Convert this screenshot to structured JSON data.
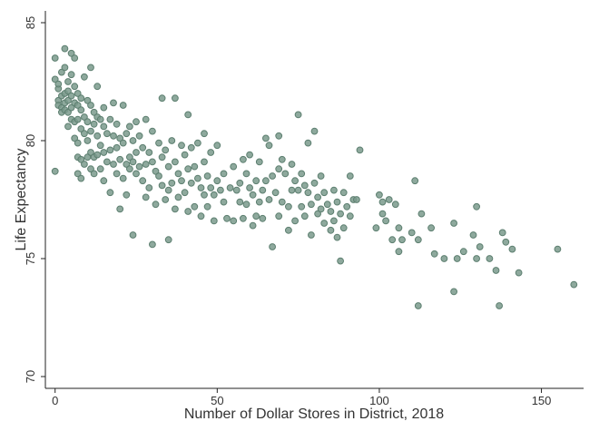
{
  "chart_data": {
    "type": "scatter",
    "xlabel": "Number of Dollar Stores in District, 2018",
    "ylabel": "Life Expectancy",
    "xlim": [
      -3,
      163
    ],
    "ylim": [
      69.5,
      85.5
    ],
    "xticks": [
      0,
      50,
      100,
      150
    ],
    "yticks": [
      70,
      75,
      80,
      85
    ],
    "xtick_labels": [
      "0",
      "50",
      "100",
      "150"
    ],
    "ytick_labels": [
      "70",
      "75",
      "80",
      "85"
    ],
    "grid": false,
    "legend": "none",
    "marker_color": "#7a9a8c",
    "marker_edge_color": "#5d7f70",
    "points": [
      [
        0,
        78.7
      ],
      [
        0,
        83.5
      ],
      [
        0,
        82.6
      ],
      [
        1,
        82.2
      ],
      [
        1,
        81.7
      ],
      [
        1,
        81.5
      ],
      [
        1,
        82.4
      ],
      [
        2,
        81.9
      ],
      [
        2,
        81.4
      ],
      [
        2,
        82.9
      ],
      [
        2,
        81.2
      ],
      [
        3,
        83.1
      ],
      [
        3,
        82.0
      ],
      [
        3,
        81.6
      ],
      [
        3,
        81.3
      ],
      [
        3,
        83.9
      ],
      [
        4,
        82.5
      ],
      [
        4,
        82.1
      ],
      [
        4,
        81.7
      ],
      [
        4,
        81.2
      ],
      [
        4,
        80.6
      ],
      [
        5,
        83.7
      ],
      [
        5,
        82.8
      ],
      [
        5,
        81.9
      ],
      [
        5,
        81.4
      ],
      [
        5,
        80.9
      ],
      [
        6,
        83.5
      ],
      [
        6,
        82.3
      ],
      [
        6,
        81.6
      ],
      [
        6,
        80.8
      ],
      [
        6,
        80.1
      ],
      [
        7,
        82.0
      ],
      [
        7,
        81.5
      ],
      [
        7,
        80.9
      ],
      [
        7,
        79.9
      ],
      [
        7,
        79.3
      ],
      [
        7,
        78.6
      ],
      [
        8,
        81.8
      ],
      [
        8,
        81.3
      ],
      [
        8,
        80.5
      ],
      [
        8,
        79.2
      ],
      [
        8,
        78.4
      ],
      [
        9,
        82.7
      ],
      [
        9,
        81.0
      ],
      [
        9,
        80.3
      ],
      [
        9,
        79.0
      ],
      [
        10,
        81.7
      ],
      [
        10,
        80.8
      ],
      [
        10,
        80.0
      ],
      [
        10,
        79.3
      ],
      [
        11,
        83.1
      ],
      [
        11,
        81.5
      ],
      [
        11,
        80.4
      ],
      [
        11,
        79.5
      ],
      [
        11,
        78.8
      ],
      [
        12,
        81.2
      ],
      [
        12,
        80.7
      ],
      [
        12,
        79.3
      ],
      [
        12,
        78.6
      ],
      [
        13,
        82.3
      ],
      [
        13,
        81.0
      ],
      [
        13,
        80.2
      ],
      [
        13,
        79.4
      ],
      [
        14,
        80.9
      ],
      [
        14,
        79.8
      ],
      [
        14,
        78.8
      ],
      [
        15,
        81.4
      ],
      [
        15,
        80.6
      ],
      [
        15,
        79.5
      ],
      [
        15,
        78.3
      ],
      [
        16,
        80.3
      ],
      [
        16,
        79.1
      ],
      [
        17,
        80.9
      ],
      [
        17,
        79.6
      ],
      [
        17,
        77.8
      ],
      [
        18,
        81.6
      ],
      [
        18,
        80.2
      ],
      [
        18,
        79.0
      ],
      [
        19,
        80.7
      ],
      [
        19,
        79.7
      ],
      [
        19,
        78.6
      ],
      [
        20,
        80.1
      ],
      [
        20,
        79.2
      ],
      [
        20,
        77.1
      ],
      [
        21,
        81.5
      ],
      [
        21,
        79.9
      ],
      [
        21,
        78.4
      ],
      [
        22,
        80.3
      ],
      [
        22,
        79.0
      ],
      [
        22,
        77.7
      ],
      [
        23,
        80.6
      ],
      [
        23,
        79.3
      ],
      [
        23,
        78.8
      ],
      [
        24,
        80.0
      ],
      [
        24,
        79.1
      ],
      [
        24,
        76.0
      ],
      [
        25,
        80.8
      ],
      [
        25,
        79.5
      ],
      [
        25,
        78.6
      ],
      [
        26,
        80.2
      ],
      [
        26,
        78.9
      ],
      [
        27,
        79.7
      ],
      [
        27,
        78.3
      ],
      [
        28,
        80.9
      ],
      [
        28,
        79.0
      ],
      [
        28,
        77.6
      ],
      [
        29,
        79.5
      ],
      [
        29,
        78.0
      ],
      [
        30,
        80.4
      ],
      [
        30,
        79.1
      ],
      [
        30,
        75.6
      ],
      [
        31,
        78.7
      ],
      [
        31,
        77.3
      ],
      [
        32,
        79.9
      ],
      [
        32,
        78.5
      ],
      [
        33,
        81.8
      ],
      [
        33,
        79.3
      ],
      [
        33,
        78.1
      ],
      [
        34,
        79.6
      ],
      [
        34,
        77.5
      ],
      [
        35,
        78.9
      ],
      [
        35,
        77.9
      ],
      [
        35,
        75.8
      ],
      [
        36,
        80.0
      ],
      [
        36,
        78.2
      ],
      [
        37,
        79.1
      ],
      [
        37,
        77.1
      ],
      [
        37,
        81.8
      ],
      [
        38,
        78.6
      ],
      [
        38,
        77.6
      ],
      [
        39,
        79.8
      ],
      [
        39,
        78.3
      ],
      [
        40,
        79.4
      ],
      [
        40,
        77.8
      ],
      [
        41,
        81.1
      ],
      [
        41,
        78.8
      ],
      [
        41,
        77.0
      ],
      [
        42,
        79.7
      ],
      [
        42,
        78.2
      ],
      [
        43,
        78.9
      ],
      [
        43,
        77.2
      ],
      [
        44,
        79.9
      ],
      [
        44,
        78.4
      ],
      [
        45,
        78.0
      ],
      [
        45,
        76.8
      ],
      [
        46,
        80.3
      ],
      [
        46,
        79.1
      ],
      [
        46,
        77.7
      ],
      [
        47,
        78.5
      ],
      [
        47,
        77.2
      ],
      [
        48,
        79.5
      ],
      [
        48,
        78.0
      ],
      [
        49,
        77.7
      ],
      [
        49,
        76.6
      ],
      [
        50,
        79.8
      ],
      [
        50,
        78.3
      ],
      [
        51,
        77.9
      ],
      [
        52,
        78.6
      ],
      [
        52,
        77.4
      ],
      [
        53,
        76.7
      ],
      [
        54,
        78.0
      ],
      [
        55,
        76.6
      ],
      [
        55,
        78.9
      ],
      [
        56,
        77.9
      ],
      [
        57,
        78.2
      ],
      [
        57,
        77.4
      ],
      [
        58,
        79.2
      ],
      [
        58,
        76.7
      ],
      [
        59,
        78.6
      ],
      [
        59,
        77.3
      ],
      [
        60,
        79.4
      ],
      [
        60,
        78.0
      ],
      [
        61,
        77.7
      ],
      [
        61,
        76.4
      ],
      [
        62,
        78.3
      ],
      [
        62,
        76.8
      ],
      [
        63,
        79.1
      ],
      [
        63,
        77.4
      ],
      [
        64,
        77.9
      ],
      [
        64,
        76.7
      ],
      [
        65,
        80.1
      ],
      [
        65,
        78.3
      ],
      [
        66,
        79.8
      ],
      [
        66,
        77.5
      ],
      [
        67,
        78.5
      ],
      [
        67,
        75.5
      ],
      [
        68,
        77.8
      ],
      [
        69,
        80.2
      ],
      [
        69,
        78.8
      ],
      [
        69,
        76.8
      ],
      [
        70,
        79.2
      ],
      [
        70,
        77.4
      ],
      [
        71,
        78.6
      ],
      [
        72,
        77.2
      ],
      [
        72,
        76.2
      ],
      [
        73,
        79.0
      ],
      [
        73,
        77.9
      ],
      [
        74,
        78.3
      ],
      [
        74,
        76.6
      ],
      [
        75,
        81.1
      ],
      [
        75,
        77.9
      ],
      [
        76,
        78.6
      ],
      [
        76,
        77.2
      ],
      [
        77,
        78.1
      ],
      [
        77,
        76.8
      ],
      [
        78,
        79.9
      ],
      [
        78,
        77.8
      ],
      [
        79,
        76.0
      ],
      [
        79,
        77.3
      ],
      [
        80,
        80.4
      ],
      [
        80,
        78.2
      ],
      [
        81,
        77.6
      ],
      [
        81,
        76.9
      ],
      [
        82,
        78.5
      ],
      [
        82,
        77.1
      ],
      [
        83,
        77.8
      ],
      [
        83,
        76.5
      ],
      [
        84,
        77.3
      ],
      [
        85,
        77.0
      ],
      [
        85,
        76.2
      ],
      [
        86,
        77.9
      ],
      [
        86,
        76.6
      ],
      [
        87,
        75.9
      ],
      [
        87,
        77.4
      ],
      [
        88,
        76.9
      ],
      [
        88,
        74.9
      ],
      [
        89,
        77.8
      ],
      [
        89,
        76.3
      ],
      [
        90,
        77.2
      ],
      [
        91,
        78.5
      ],
      [
        91,
        76.8
      ],
      [
        92,
        77.5
      ],
      [
        93,
        77.5
      ],
      [
        94,
        79.6
      ],
      [
        99,
        76.3
      ],
      [
        100,
        77.7
      ],
      [
        101,
        76.9
      ],
      [
        101,
        77.4
      ],
      [
        102,
        76.6
      ],
      [
        103,
        77.5
      ],
      [
        104,
        75.8
      ],
      [
        105,
        77.3
      ],
      [
        106,
        75.3
      ],
      [
        106,
        76.3
      ],
      [
        107,
        75.8
      ],
      [
        110,
        76.1
      ],
      [
        111,
        78.3
      ],
      [
        112,
        75.8
      ],
      [
        112,
        73.0
      ],
      [
        113,
        76.9
      ],
      [
        116,
        76.3
      ],
      [
        117,
        75.2
      ],
      [
        120,
        75.0
      ],
      [
        123,
        76.5
      ],
      [
        123,
        73.6
      ],
      [
        124,
        75.0
      ],
      [
        126,
        75.3
      ],
      [
        129,
        76.0
      ],
      [
        130,
        75.0
      ],
      [
        130,
        77.2
      ],
      [
        131,
        75.5
      ],
      [
        134,
        75.0
      ],
      [
        136,
        74.5
      ],
      [
        137,
        73.0
      ],
      [
        138,
        76.1
      ],
      [
        139,
        75.7
      ],
      [
        141,
        75.4
      ],
      [
        143,
        74.4
      ],
      [
        155,
        75.4
      ],
      [
        160,
        73.9
      ]
    ]
  }
}
